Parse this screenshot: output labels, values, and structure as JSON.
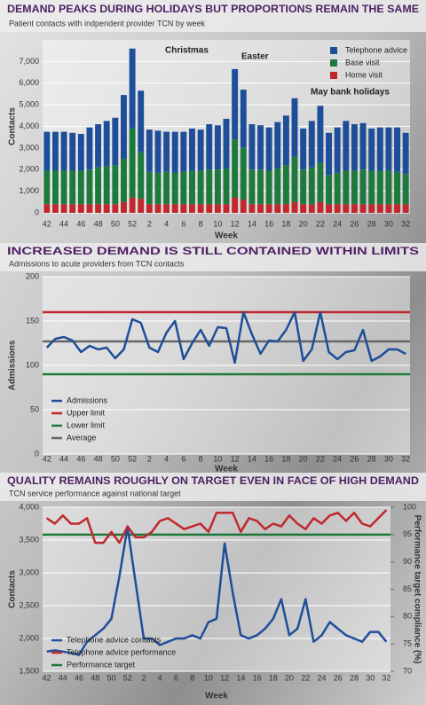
{
  "chart_data": [
    {
      "type": "bar",
      "stacked": true,
      "title": "DEMAND PEAKS DURING HOLIDAYS BUT PROPORTIONS REMAIN THE SAME",
      "subtitle": "Patient contacts with indpendent provider TCN by week",
      "x_label": "Week",
      "y_label": "Contacts",
      "categories": [
        "42",
        null,
        "44",
        null,
        "46",
        null,
        "48",
        null,
        "50",
        null,
        "52",
        null,
        "2",
        null,
        "4",
        null,
        "6",
        null,
        "8",
        null,
        "10",
        null,
        "12",
        null,
        "14",
        null,
        "16",
        null,
        "18",
        null,
        "20",
        null,
        "22",
        null,
        "24",
        null,
        "26",
        null,
        "28",
        null,
        "30",
        null,
        "32"
      ],
      "series": [
        {
          "name": "Telephone advice",
          "color": "#1f4e99",
          "values": [
            1800,
            1800,
            1800,
            1750,
            1700,
            1950,
            2000,
            2100,
            2200,
            2950,
            3700,
            2850,
            1950,
            1950,
            1850,
            1900,
            1850,
            1950,
            1900,
            2100,
            2050,
            2300,
            3250,
            2700,
            2100,
            2050,
            2000,
            2150,
            2300,
            2700,
            1900,
            2150,
            2650,
            1950,
            2100,
            2300,
            2150,
            2150,
            1950,
            2000,
            2000,
            2050,
            1900
          ]
        },
        {
          "name": "Base visit",
          "color": "#1e7a3c",
          "values": [
            1550,
            1550,
            1550,
            1550,
            1550,
            1600,
            1700,
            1750,
            1800,
            2000,
            3200,
            2150,
            1500,
            1450,
            1500,
            1450,
            1500,
            1550,
            1550,
            1600,
            1600,
            1650,
            2700,
            2400,
            1600,
            1600,
            1550,
            1650,
            1800,
            2100,
            1600,
            1700,
            1800,
            1350,
            1450,
            1550,
            1550,
            1600,
            1550,
            1550,
            1550,
            1500,
            1400
          ]
        },
        {
          "name": "Home visit",
          "color": "#c0282d",
          "values": [
            400,
            400,
            400,
            400,
            400,
            400,
            400,
            400,
            400,
            500,
            700,
            650,
            400,
            400,
            400,
            400,
            400,
            400,
            400,
            400,
            400,
            400,
            700,
            600,
            400,
            400,
            400,
            400,
            400,
            500,
            400,
            400,
            500,
            400,
            400,
            400,
            400,
            400,
            400,
            400,
            400,
            400,
            400
          ]
        }
      ],
      "ylim": [
        0,
        8000
      ],
      "yticks": [
        0,
        {
          "value": 1000,
          "label": "1,000"
        },
        {
          "value": 2000,
          "label": "2,000"
        },
        {
          "value": 3000,
          "label": "3,000"
        },
        {
          "value": 4000,
          "label": "4,000"
        },
        {
          "value": 5000,
          "label": "5,000"
        },
        {
          "value": 6000,
          "label": "6,000"
        },
        {
          "value": 7000,
          "label": "7,000"
        }
      ],
      "grid": true,
      "legend": "top-right",
      "annotations": [
        "Christmas",
        "Easter",
        "May bank holidays"
      ]
    },
    {
      "type": "line",
      "title": "INCREASED DEMAND IS STILL CONTAINED WITHIN LIMITS",
      "subtitle": "Admissions to acute providers from TCN contacts",
      "x_label": "Week",
      "y_label": "Admissions",
      "categories": [
        "42",
        null,
        "44",
        null,
        "46",
        null,
        "48",
        null,
        "50",
        null,
        "52",
        null,
        "2",
        null,
        "4",
        null,
        "6",
        null,
        "8",
        null,
        "10",
        null,
        "12",
        null,
        "14",
        null,
        "16",
        null,
        "18",
        null,
        "20",
        null,
        "22",
        null,
        "24",
        null,
        "26",
        null,
        "28",
        null,
        "30",
        null,
        "32"
      ],
      "series": [
        {
          "name": "Admissions",
          "color": "#1f4e99",
          "values": [
            120,
            130,
            132,
            128,
            115,
            122,
            118,
            120,
            108,
            118,
            152,
            148,
            120,
            115,
            137,
            150,
            107,
            125,
            140,
            122,
            143,
            142,
            103,
            160,
            135,
            113,
            128,
            127,
            140,
            160,
            105,
            118,
            160,
            115,
            107,
            115,
            117,
            140,
            105,
            110,
            118,
            118,
            113
          ]
        }
      ],
      "reference_lines": [
        {
          "name": "Upper limit",
          "color": "#c0282d",
          "value": 160
        },
        {
          "name": "Lower limit",
          "color": "#1e7a3c",
          "value": 90
        },
        {
          "name": "Average",
          "color": "#666666",
          "value": 127
        }
      ],
      "ylim": [
        0,
        200
      ],
      "yticks": [
        0,
        50,
        100,
        150,
        200
      ],
      "grid": true,
      "legend": "bottom-left"
    },
    {
      "type": "line",
      "title": "QUALITY REMAINS ROUGHLY ON TARGET EVEN IN FACE OF HIGH DEMAND",
      "subtitle": "TCN service performance against national target",
      "x_label": "Week",
      "y_label": "Contacts",
      "y2_label": "Performance target compliance (%)",
      "categories": [
        "42",
        null,
        "44",
        null,
        "46",
        null,
        "48",
        null,
        "50",
        null,
        "52",
        null,
        "2",
        null,
        "4",
        null,
        "6",
        null,
        "8",
        null,
        "10",
        null,
        "12",
        null,
        "14",
        null,
        "16",
        null,
        "18",
        null,
        "20",
        null,
        "22",
        null,
        "24",
        null,
        "26",
        null,
        "28",
        null,
        "30",
        null,
        "32"
      ],
      "series": [
        {
          "name": "Telephone advice contacts",
          "color": "#1f4e99",
          "values": [
            1800,
            1820,
            1800,
            1780,
            1750,
            1950,
            2050,
            2150,
            2300,
            2950,
            3700,
            2850,
            2000,
            2000,
            1900,
            1950,
            2000,
            2000,
            2050,
            2000,
            2250,
            2300,
            3450,
            2700,
            2050,
            2000,
            2050,
            2150,
            2300,
            2600,
            2050,
            2150,
            2600,
            1950,
            2050,
            2250,
            2150,
            2050,
            2000,
            1950,
            2100,
            2100,
            1950
          ]
        },
        {
          "name": "Telephone advice performance",
          "color": "#c0282d",
          "axis": "y2",
          "values": [
            98,
            97,
            98.5,
            97,
            97,
            98,
            93.5,
            93.5,
            95.5,
            93.5,
            96.5,
            94.5,
            94.5,
            95.5,
            97.5,
            98,
            97,
            96,
            96.5,
            97,
            95.5,
            99,
            99,
            99,
            95.5,
            98,
            97.5,
            96,
            97,
            96.5,
            98.5,
            97,
            96,
            98,
            97,
            98.5,
            99,
            97.5,
            99,
            97,
            96.5,
            98,
            99.5
          ]
        }
      ],
      "reference_lines": [
        {
          "name": "Performance target",
          "color": "#1e7a3c",
          "value": 95,
          "axis": "y2"
        }
      ],
      "ylim": [
        1500,
        4000
      ],
      "yticks": [
        {
          "value": 1500,
          "label": "1,500"
        },
        {
          "value": 2000,
          "label": "2,000"
        },
        {
          "value": 2500,
          "label": "2,500"
        },
        {
          "value": 3000,
          "label": "3,000"
        },
        {
          "value": 3500,
          "label": "3,500"
        },
        {
          "value": 4000,
          "label": "4,000"
        }
      ],
      "y2lim": [
        70,
        100
      ],
      "y2ticks": [
        70,
        75,
        80,
        85,
        90,
        95,
        100
      ],
      "grid": true,
      "legend": "bottom-left"
    }
  ]
}
